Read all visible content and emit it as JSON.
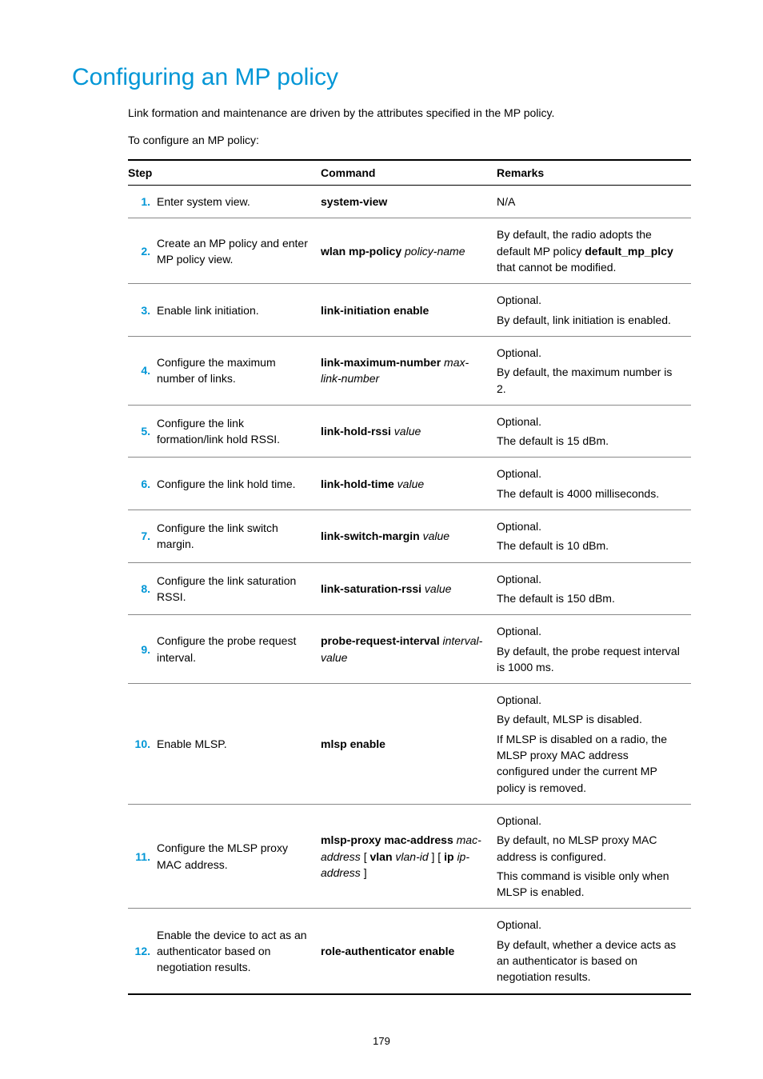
{
  "page": {
    "title": "Configuring an MP policy",
    "intro1": "Link formation and maintenance are driven by the attributes specified in the MP policy.",
    "intro2": "To configure an MP policy:",
    "pageNumber": "179"
  },
  "table": {
    "headers": {
      "step": "Step",
      "command": "Command",
      "remarks": "Remarks"
    },
    "rows": [
      {
        "num": "1.",
        "step": "Enter system view.",
        "cmd": [
          {
            "b": "system-view"
          }
        ],
        "rem": [
          "N/A"
        ]
      },
      {
        "num": "2.",
        "step": "Create an MP policy and enter MP policy view.",
        "cmd": [
          {
            "b": "wlan mp-policy"
          },
          " ",
          {
            "i": "policy-name"
          }
        ],
        "rem": [
          "By default, the radio adopts the default MP policy <b>default_mp_plcy</b> that cannot be modified."
        ]
      },
      {
        "num": "3.",
        "step": "Enable link initiation.",
        "cmd": [
          {
            "b": "link-initiation enable"
          }
        ],
        "rem": [
          "Optional.",
          "By default, link initiation is enabled."
        ]
      },
      {
        "num": "4.",
        "step": "Configure the maximum number of links.",
        "cmd": [
          {
            "b": "link-maximum-number"
          },
          " ",
          {
            "i": "max-link-number"
          }
        ],
        "rem": [
          "Optional.",
          "By default, the maximum number is 2."
        ]
      },
      {
        "num": "5.",
        "step": "Configure the link formation/link hold RSSI.",
        "cmd": [
          {
            "b": "link-hold-rssi"
          },
          " ",
          {
            "i": "value"
          }
        ],
        "rem": [
          "Optional.",
          "The default is 15 dBm."
        ]
      },
      {
        "num": "6.",
        "step": "Configure the link hold time.",
        "cmd": [
          {
            "b": "link-hold-time"
          },
          " ",
          {
            "i": "value"
          }
        ],
        "rem": [
          "Optional.",
          "The default is 4000 milliseconds."
        ]
      },
      {
        "num": "7.",
        "step": "Configure the link switch margin.",
        "cmd": [
          {
            "b": "link-switch-margin"
          },
          " ",
          {
            "i": "value"
          }
        ],
        "rem": [
          "Optional.",
          "The default is 10 dBm."
        ]
      },
      {
        "num": "8.",
        "step": "Configure the link saturation RSSI.",
        "cmd": [
          {
            "b": "link-saturation-rssi"
          },
          " ",
          {
            "i": "value"
          }
        ],
        "rem": [
          "Optional.",
          "The default is 150 dBm."
        ]
      },
      {
        "num": "9.",
        "step": "Configure the probe request interval.",
        "cmd": [
          {
            "b": "probe-request-interval"
          },
          " ",
          {
            "i": "interval-value"
          }
        ],
        "rem": [
          "Optional.",
          "By default, the probe request interval is 1000 ms."
        ]
      },
      {
        "num": "10.",
        "step": "Enable MLSP.",
        "cmd": [
          {
            "b": "mlsp enable"
          }
        ],
        "rem": [
          "Optional.",
          "By default, MLSP is disabled.",
          "If MLSP is disabled on a radio, the MLSP proxy MAC address configured under the current MP policy is removed."
        ]
      },
      {
        "num": "11.",
        "step": "Configure the MLSP proxy MAC address.",
        "cmd": [
          {
            "b": "mlsp-proxy mac-address"
          },
          " ",
          {
            "i": "mac-address"
          },
          " [ ",
          {
            "b": "vlan"
          },
          " ",
          {
            "i": "vlan-id"
          },
          " ] [ ",
          {
            "b": "ip"
          },
          " ",
          {
            "i": "ip-address"
          },
          " ]"
        ],
        "rem": [
          "Optional.",
          "By default, no MLSP proxy MAC address is configured.",
          "This command is visible only when MLSP is enabled."
        ]
      },
      {
        "num": "12.",
        "step": "Enable the device to act as an authenticator based on negotiation results.",
        "cmd": [
          {
            "b": "role-authenticator enable"
          }
        ],
        "rem": [
          "Optional.",
          "By default, whether a device acts as an authenticator is based on negotiation results."
        ]
      }
    ]
  }
}
